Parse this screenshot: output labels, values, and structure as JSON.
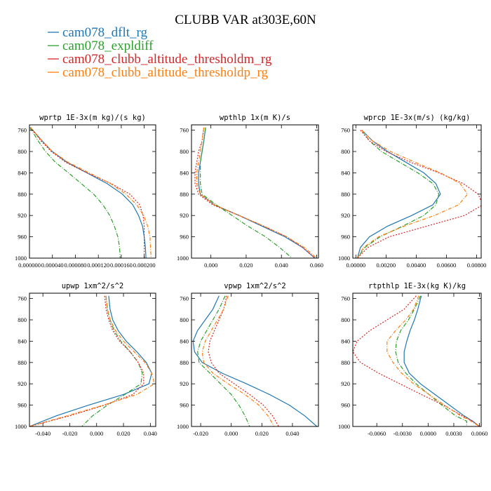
{
  "title": "CLUBB VAR at303E,60N",
  "legend": [
    {
      "label": "cam078_dflt_rg",
      "color": "#1f77b4",
      "dash": ""
    },
    {
      "label": "cam078_expldiff",
      "color": "#2ca02c",
      "dash": "6,2,1,2"
    },
    {
      "label": "cam078_clubb_altitude_thresholdm_rg",
      "color": "#d62728",
      "dash": "2,2"
    },
    {
      "label": "cam078_clubb_altitude_thresholdp_rg",
      "color": "#ff7f0e",
      "dash": "5,2,1,2"
    }
  ],
  "chart_data": [
    {
      "type": "line",
      "title": "wprtp  1E-3x(m kg)/(s kg)",
      "xlim": [
        0,
        0.00022
      ],
      "ylim": [
        1000,
        750
      ],
      "xticks": [
        0,
        4e-05,
        8e-05,
        0.00012,
        0.00016,
        0.0002
      ],
      "xticklabels": [
        "0.000000",
        "0.000040",
        "0.000080",
        "0.000120",
        "0.000160",
        "0.000200"
      ],
      "yticks": [
        760,
        800,
        840,
        880,
        920,
        960,
        1000
      ],
      "yticklabels": [
        "760",
        "800",
        "840",
        "880",
        "920",
        "960",
        "1000"
      ],
      "y": [
        755,
        780,
        800,
        820,
        840,
        860,
        880,
        900,
        920,
        940,
        960,
        980,
        1000
      ],
      "series": [
        {
          "x": [
            2e-06,
            2.2e-05,
            4e-05,
            6.5e-05,
            0.0001,
            0.000135,
            0.000162,
            0.00018,
            0.00019,
            0.000197,
            0.0002,
            0.000202,
            0.000203
          ]
        },
        {
          "x": [
            1e-06,
            1.5e-05,
            2.8e-05,
            4.5e-05,
            6.8e-05,
            9e-05,
            0.000112,
            0.000128,
            0.00014,
            0.000148,
            0.000154,
            0.000157,
            0.000158
          ]
        },
        {
          "x": [
            2e-06,
            2e-05,
            3.8e-05,
            6.3e-05,
            0.0001,
            0.000142,
            0.000175,
            0.000192,
            0.000198,
            0.0002,
            0.0002,
            0.0002,
            0.0002
          ]
        },
        {
          "x": [
            2e-06,
            2.2e-05,
            4e-05,
            6.7e-05,
            0.000104,
            0.000141,
            0.000168,
            0.000187,
            0.000199,
            0.000206,
            0.00021,
            0.000211,
            0.000212
          ]
        }
      ]
    },
    {
      "type": "line",
      "title": "wpthlp  1x(m K)/s",
      "xlim": [
        -0.011,
        0.061
      ],
      "ylim": [
        1000,
        750
      ],
      "xticks": [
        0,
        0.02,
        0.04,
        0.06
      ],
      "xticklabels": [
        "0.000",
        "0.020",
        "0.040",
        "0.060"
      ],
      "yticks": [
        760,
        800,
        840,
        880,
        920,
        960,
        1000
      ],
      "yticklabels": [
        "760",
        "800",
        "840",
        "880",
        "920",
        "960",
        "1000"
      ],
      "y": [
        755,
        780,
        800,
        820,
        840,
        860,
        880,
        900,
        920,
        940,
        960,
        980,
        1000
      ],
      "series": [
        {
          "x": [
            -0.003,
            -0.004,
            -0.005,
            -0.006,
            -0.007,
            -0.007,
            -0.006,
            0.002,
            0.016,
            0.029,
            0.042,
            0.052,
            0.059
          ]
        },
        {
          "x": [
            -0.003,
            -0.004,
            -0.005,
            -0.006,
            -0.006,
            -0.006,
            -0.005,
            0.003,
            0.012,
            0.021,
            0.031,
            0.039,
            0.046
          ]
        },
        {
          "x": [
            -0.004,
            -0.005,
            -0.007,
            -0.008,
            -0.009,
            -0.009,
            -0.007,
            0.001,
            0.016,
            0.03,
            0.043,
            0.052,
            0.059
          ]
        },
        {
          "x": [
            -0.004,
            -0.005,
            -0.006,
            -0.007,
            -0.008,
            -0.008,
            -0.006,
            0.002,
            0.016,
            0.03,
            0.043,
            0.053,
            0.06
          ]
        }
      ]
    },
    {
      "type": "line",
      "title": "wprcp  1E-3x(m/s) (kg/kg)",
      "xlim": [
        -0.0002,
        0.0083
      ],
      "ylim": [
        1000,
        750
      ],
      "xticks": [
        0,
        0.002,
        0.004,
        0.006,
        0.008
      ],
      "xticklabels": [
        "0.00000",
        "0.00200",
        "0.00400",
        "0.00600",
        "0.00800"
      ],
      "yticks": [
        760,
        800,
        840,
        880,
        920,
        960,
        1000
      ],
      "yticklabels": [
        "760",
        "800",
        "840",
        "880",
        "920",
        "960",
        "1000"
      ],
      "y": [
        760,
        780,
        800,
        820,
        840,
        860,
        880,
        900,
        920,
        940,
        960,
        980,
        1000
      ],
      "series": [
        {
          "x": [
            0.0004,
            0.0011,
            0.0021,
            0.0033,
            0.0045,
            0.0053,
            0.0056,
            0.0051,
            0.0037,
            0.0021,
            0.0009,
            0.0003,
            0.0001
          ]
        },
        {
          "x": [
            0.0004,
            0.0009,
            0.0017,
            0.0029,
            0.0041,
            0.0051,
            0.0055,
            0.0053,
            0.0045,
            0.0031,
            0.0016,
            0.0006,
            0.0001
          ]
        },
        {
          "x": [
            0.0003,
            0.0009,
            0.002,
            0.0036,
            0.0055,
            0.0071,
            0.0081,
            0.0084,
            0.0072,
            0.0047,
            0.0022,
            0.0008,
            0.0001
          ]
        },
        {
          "x": [
            0.0004,
            0.0011,
            0.0023,
            0.0039,
            0.0056,
            0.0069,
            0.0074,
            0.0068,
            0.0052,
            0.0032,
            0.0015,
            0.0005,
            0.0001
          ]
        }
      ]
    },
    {
      "type": "line",
      "title": "upwp  1xm^2/s^2",
      "xlim": [
        -0.05,
        0.044
      ],
      "ylim": [
        1000,
        750
      ],
      "xticks": [
        -0.04,
        -0.02,
        0,
        0.02,
        0.04
      ],
      "xticklabels": [
        "-0.040",
        "-0.020",
        "0.000",
        "0.020",
        "0.040"
      ],
      "yticks": [
        760,
        800,
        840,
        880,
        920,
        960,
        1000
      ],
      "yticklabels": [
        "760",
        "800",
        "840",
        "880",
        "920",
        "960",
        "1000"
      ],
      "y": [
        755,
        780,
        800,
        820,
        840,
        860,
        880,
        900,
        920,
        940,
        960,
        980,
        1000
      ],
      "series": [
        {
          "x": [
            0.009,
            0.01,
            0.012,
            0.016,
            0.022,
            0.03,
            0.037,
            0.041,
            0.039,
            0.02,
            -0.006,
            -0.03,
            -0.05
          ]
        },
        {
          "x": [
            0.007,
            0.008,
            0.01,
            0.013,
            0.018,
            0.025,
            0.031,
            0.034,
            0.033,
            0.021,
            0.008,
            -0.003,
            -0.011
          ]
        },
        {
          "x": [
            0.006,
            0.007,
            0.009,
            0.012,
            0.017,
            0.025,
            0.031,
            0.035,
            0.035,
            0.027,
            0.006,
            -0.02,
            -0.05
          ]
        },
        {
          "x": [
            0.007,
            0.008,
            0.01,
            0.014,
            0.02,
            0.028,
            0.036,
            0.041,
            0.043,
            0.03,
            0.005,
            -0.022,
            -0.05
          ]
        }
      ]
    },
    {
      "type": "line",
      "title": "vpwp  1xm^2/s^2",
      "xlim": [
        -0.026,
        0.057
      ],
      "ylim": [
        1000,
        750
      ],
      "xticks": [
        -0.02,
        0,
        0.02,
        0.04
      ],
      "xticklabels": [
        "-0.020",
        "0.000",
        "0.020",
        "0.040"
      ],
      "yticks": [
        760,
        800,
        840,
        880,
        920,
        960,
        1000
      ],
      "yticklabels": [
        "760",
        "800",
        "840",
        "880",
        "920",
        "960",
        "1000"
      ],
      "y": [
        755,
        780,
        800,
        820,
        840,
        860,
        880,
        900,
        920,
        940,
        960,
        980,
        1000
      ],
      "series": [
        {
          "x": [
            -0.008,
            -0.012,
            -0.017,
            -0.022,
            -0.025,
            -0.024,
            -0.019,
            -0.006,
            0.01,
            0.025,
            0.038,
            0.048,
            0.056
          ]
        },
        {
          "x": [
            -0.004,
            -0.008,
            -0.012,
            -0.016,
            -0.02,
            -0.022,
            -0.021,
            -0.014,
            -0.007,
            0.0,
            0.005,
            0.009,
            0.012
          ]
        },
        {
          "x": [
            -0.003,
            -0.005,
            -0.008,
            -0.011,
            -0.014,
            -0.015,
            -0.013,
            -0.008,
            0.002,
            0.012,
            0.021,
            0.027,
            0.031
          ]
        },
        {
          "x": [
            -0.002,
            -0.005,
            -0.009,
            -0.013,
            -0.017,
            -0.019,
            -0.018,
            -0.012,
            -0.002,
            0.009,
            0.018,
            0.024,
            0.028
          ]
        }
      ]
    },
    {
      "type": "line",
      "title": "rtpthlp  1E-3x(kg K)/kg",
      "xlim": [
        -0.0088,
        0.0062
      ],
      "ylim": [
        1000,
        750
      ],
      "xticks": [
        -0.006,
        -0.003,
        0,
        0.003,
        0.006
      ],
      "xticklabels": [
        "-0.0060",
        "-0.0030",
        "0.0000",
        "0.0030",
        "0.0060"
      ],
      "yticks": [
        760,
        800,
        840,
        880,
        920,
        960,
        1000
      ],
      "yticklabels": [
        "760",
        "800",
        "840",
        "880",
        "920",
        "960",
        "1000"
      ],
      "y": [
        755,
        780,
        800,
        820,
        840,
        860,
        880,
        900,
        920,
        940,
        960,
        980,
        990,
        1000
      ],
      "series": [
        {
          "x": [
            -0.0008,
            -0.0012,
            -0.0016,
            -0.0021,
            -0.0025,
            -0.0028,
            -0.0028,
            -0.0022,
            -0.0009,
            0.0008,
            0.0025,
            0.0042,
            0.0052,
            0.006
          ]
        },
        {
          "x": [
            -0.0009,
            -0.0016,
            -0.0023,
            -0.0032,
            -0.0037,
            -0.0038,
            -0.0035,
            -0.0026,
            -0.0014,
            0.0001,
            0.0016,
            0.0032,
            0.0045,
            0.0045
          ]
        },
        {
          "x": [
            -0.0014,
            -0.0028,
            -0.0048,
            -0.0068,
            -0.0083,
            -0.0088,
            -0.0079,
            -0.0058,
            -0.0033,
            -0.0008,
            0.0018,
            0.004,
            0.0052,
            0.006
          ]
        },
        {
          "x": [
            -0.0011,
            -0.0017,
            -0.0026,
            -0.0038,
            -0.0048,
            -0.0048,
            -0.0041,
            -0.0031,
            -0.0017,
            0.0001,
            0.0019,
            0.0038,
            0.005,
            0.006
          ]
        }
      ]
    }
  ]
}
